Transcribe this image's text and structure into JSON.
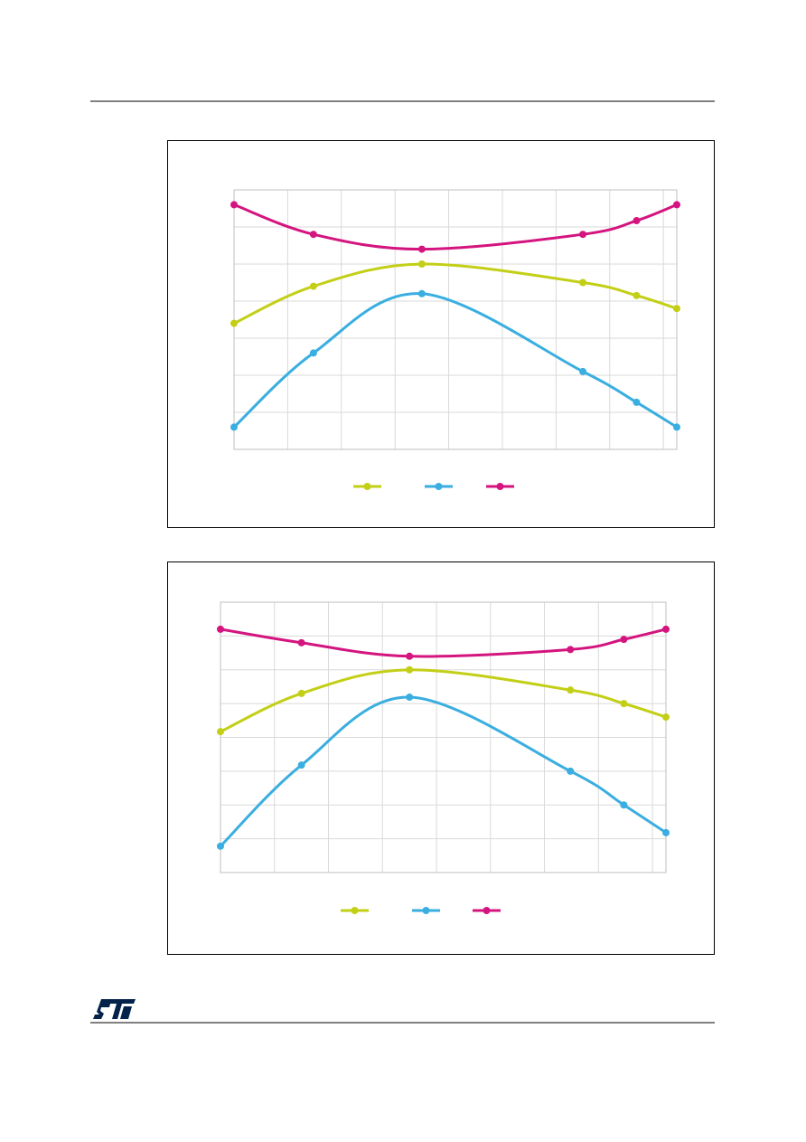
{
  "chart_data": [
    {
      "type": "line",
      "grid": true,
      "legend": "bottom",
      "x": [
        0,
        1.48,
        3.5,
        6.5,
        7.5,
        8.25
      ],
      "xlim": [
        0,
        8.25
      ],
      "xticks": [
        0,
        1,
        2,
        3,
        4,
        5,
        6,
        7,
        8
      ],
      "ylim": [
        0,
        7
      ],
      "yticks": [
        0,
        1,
        2,
        3,
        4,
        5,
        6,
        7
      ],
      "series": [
        {
          "color": "#c3cf16",
          "values": [
            3.4,
            4.4,
            5.0,
            4.5,
            4.15,
            3.8
          ]
        },
        {
          "color": "#3aaee0",
          "values": [
            0.6,
            2.6,
            4.2,
            2.1,
            1.27,
            0.6
          ]
        },
        {
          "color": "#d4147f",
          "values": [
            6.6,
            5.8,
            5.4,
            5.8,
            6.17,
            6.6
          ]
        }
      ]
    },
    {
      "type": "line",
      "grid": true,
      "legend": "bottom",
      "x": [
        0,
        1.5,
        3.5,
        6.48,
        7.47,
        8.25
      ],
      "xlim": [
        0,
        8.25
      ],
      "xticks": [
        0,
        1,
        2,
        3,
        4,
        5,
        6,
        7,
        8
      ],
      "ylim": [
        0,
        8
      ],
      "yticks": [
        0,
        1,
        2,
        3,
        4,
        5,
        6,
        7,
        8
      ],
      "series": [
        {
          "color": "#c3cf16",
          "values": [
            4.17,
            5.3,
            6.0,
            5.4,
            5.0,
            4.6
          ]
        },
        {
          "color": "#3aaee0",
          "values": [
            0.78,
            3.18,
            5.19,
            3.0,
            2.0,
            1.18
          ]
        },
        {
          "color": "#d4147f",
          "values": [
            7.2,
            6.8,
            6.4,
            6.6,
            6.9,
            7.2
          ]
        }
      ]
    }
  ]
}
